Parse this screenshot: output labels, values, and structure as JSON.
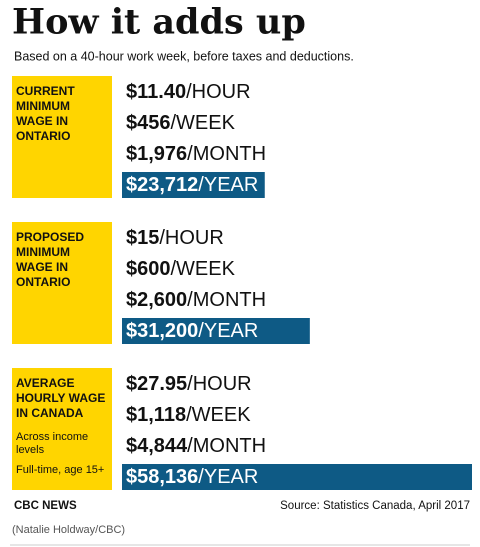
{
  "header": {
    "title": "How it adds up",
    "subtitle": "Based on a 40-hour work week, before taxes and deductions."
  },
  "groups": [
    {
      "label": [
        "CURRENT",
        "MINIMUM",
        "WAGE IN",
        "ONTARIO"
      ],
      "rows": [
        {
          "amount": "$11.40",
          "unit": "/HOUR"
        },
        {
          "amount": "$456",
          "unit": "/WEEK"
        },
        {
          "amount": "$1,976",
          "unit": "/MONTH"
        }
      ],
      "year": {
        "value": 23712,
        "label": "$23,712",
        "unit": "/YEAR"
      }
    },
    {
      "label": [
        "PROPOSED",
        "MINIMUM",
        "WAGE IN",
        "ONTARIO"
      ],
      "rows": [
        {
          "amount": "$15",
          "unit": "/HOUR"
        },
        {
          "amount": "$600",
          "unit": "/WEEK"
        },
        {
          "amount": "$2,600",
          "unit": "/MONTH"
        }
      ],
      "year": {
        "value": 31200,
        "label": "$31,200",
        "unit": "/YEAR"
      }
    },
    {
      "label": [
        "AVERAGE",
        "HOURLY WAGE",
        "IN CANADA"
      ],
      "notes": [
        [
          "Across income",
          "levels"
        ],
        [
          "Full-time, age 15+"
        ]
      ],
      "rows": [
        {
          "amount": "$27.95",
          "unit": "/HOUR"
        },
        {
          "amount": "$1,118",
          "unit": "/WEEK"
        },
        {
          "amount": "$4,844",
          "unit": "/MONTH"
        }
      ],
      "year": {
        "value": 58136,
        "label": "$58,136",
        "unit": "/YEAR"
      }
    }
  ],
  "footer": {
    "left": "CBC NEWS",
    "right": "Source: Statistics Canada, April 2017"
  },
  "credit": "(Natalie Holdway/CBC)"
}
